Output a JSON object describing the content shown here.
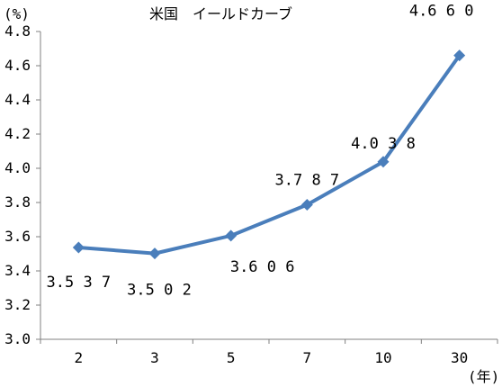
{
  "chart_data": {
    "type": "line",
    "title": "米国　イールドカーブ",
    "y_unit_label": "(%)",
    "x_unit_label": "(年)",
    "categories": [
      "2",
      "3",
      "5",
      "7",
      "10",
      "30"
    ],
    "series": [
      {
        "values": [
          3.537,
          3.502,
          3.606,
          3.787,
          4.038,
          4.66
        ],
        "labels": [
          "3.537",
          "3.502",
          "3.606",
          "3.787",
          "4.038",
          "4.660"
        ]
      }
    ],
    "ylim": [
      3.0,
      4.8
    ],
    "y_ticks": [
      "3.0",
      "3.2",
      "3.4",
      "3.6",
      "3.8",
      "4.0",
      "4.2",
      "4.4",
      "4.6",
      "4.8"
    ],
    "grid": false,
    "legend": "none",
    "colors": {
      "line": "#4a7ebb",
      "axis": "#808080"
    }
  }
}
